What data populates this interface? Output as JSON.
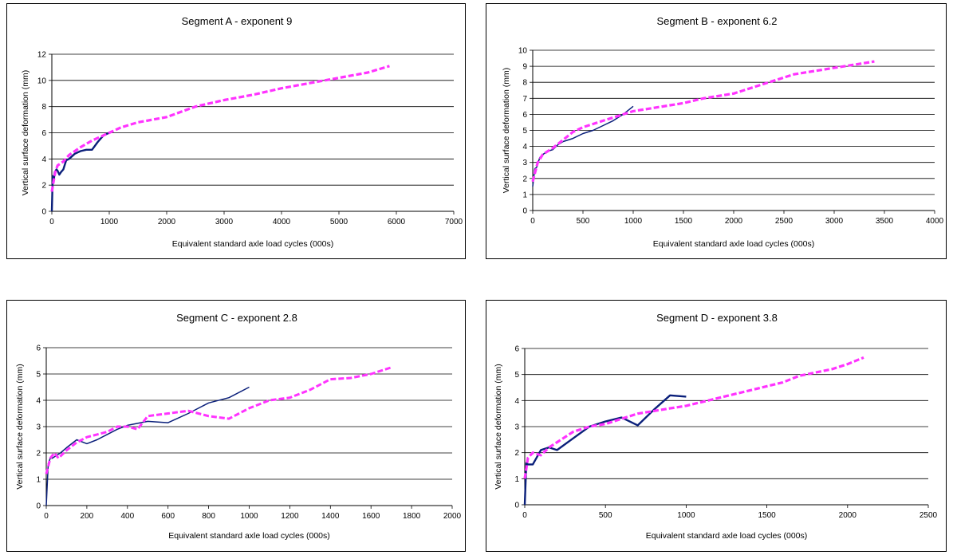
{
  "chart_data": [
    {
      "type": "line",
      "title": "Segment A - exponent 9",
      "xlabel": "Equivalent standard axle load cycles (000s)",
      "ylabel": "Vertical surface deformation (mm)",
      "xlim": [
        0,
        7000
      ],
      "ylim": [
        0,
        12
      ],
      "xticks": [
        0,
        1000,
        2000,
        3000,
        4000,
        5000,
        6000,
        7000
      ],
      "yticks": [
        0,
        2,
        4,
        6,
        8,
        10,
        12
      ],
      "grid": "horizontal",
      "series": [
        {
          "color": "#0a1f7a",
          "dashed": false,
          "width": 2.4,
          "x": [
            0,
            15,
            30,
            50,
            80,
            100,
            130,
            160,
            200,
            250,
            300,
            400,
            500,
            600,
            700,
            800,
            900,
            1000
          ],
          "y": [
            0,
            2.7,
            2.2,
            3.0,
            3.2,
            3.1,
            2.8,
            3.0,
            3.2,
            3.9,
            4.0,
            4.4,
            4.6,
            4.7,
            4.7,
            5.3,
            5.8,
            6.0
          ]
        },
        {
          "color": "#ff33ff",
          "dashed": true,
          "width": 3.2,
          "x": [
            0,
            30,
            60,
            100,
            200,
            300,
            500,
            700,
            1000,
            1200,
            1500,
            2000,
            2500,
            3000,
            3500,
            4000,
            4500,
            5000,
            5500,
            5880
          ],
          "y": [
            1.5,
            2.3,
            3.0,
            3.5,
            3.8,
            4.3,
            4.9,
            5.4,
            6.0,
            6.4,
            6.8,
            7.2,
            8.0,
            8.5,
            8.9,
            9.4,
            9.8,
            10.2,
            10.6,
            11.1
          ]
        }
      ]
    },
    {
      "type": "line",
      "title": "Segment B - exponent 6.2",
      "xlabel": "Equivalent standard axle load cycles (000s)",
      "ylabel": "Vertical surface deformation (mm)",
      "xlim": [
        0,
        4000
      ],
      "ylim": [
        0,
        10
      ],
      "xticks": [
        0,
        500,
        1000,
        1500,
        2000,
        2500,
        3000,
        3500,
        4000
      ],
      "yticks": [
        0,
        1,
        2,
        3,
        4,
        5,
        6,
        7,
        8,
        9,
        10
      ],
      "grid": "horizontal",
      "series": [
        {
          "color": "#0a1f7a",
          "dashed": false,
          "width": 1.5,
          "x": [
            0,
            20,
            40,
            70,
            100,
            150,
            200,
            250,
            300,
            400,
            500,
            600,
            700,
            800,
            900,
            1000
          ],
          "y": [
            1.5,
            2.6,
            2.7,
            3.3,
            3.5,
            3.7,
            3.8,
            4.1,
            4.3,
            4.5,
            4.8,
            5.0,
            5.3,
            5.6,
            6.0,
            6.5
          ]
        },
        {
          "color": "#ff33ff",
          "dashed": true,
          "width": 3.2,
          "x": [
            0,
            20,
            50,
            100,
            200,
            300,
            400,
            500,
            600,
            700,
            800,
            900,
            1000,
            1200,
            1500,
            1700,
            2000,
            2300,
            2600,
            3000,
            3200,
            3400
          ],
          "y": [
            1.8,
            2.3,
            3.0,
            3.5,
            3.9,
            4.4,
            4.9,
            5.2,
            5.4,
            5.6,
            5.8,
            6.0,
            6.2,
            6.4,
            6.7,
            7.0,
            7.3,
            7.9,
            8.5,
            8.9,
            9.1,
            9.3
          ]
        }
      ]
    },
    {
      "type": "line",
      "title": "Segment C - exponent 2.8",
      "xlabel": "Equivalent standard axle load cycles (000s)",
      "ylabel": "Vertical surface deformation (mm)",
      "xlim": [
        0,
        2000
      ],
      "ylim": [
        0,
        6
      ],
      "xticks": [
        0,
        200,
        400,
        600,
        800,
        1000,
        1200,
        1400,
        1600,
        1800,
        2000
      ],
      "yticks": [
        0,
        1,
        2,
        3,
        4,
        5,
        6
      ],
      "grid": "horizontal",
      "series": [
        {
          "color": "#0a1f7a",
          "dashed": false,
          "width": 1.5,
          "x": [
            0,
            10,
            20,
            30,
            50,
            70,
            100,
            150,
            200,
            250,
            300,
            350,
            400,
            500,
            600,
            700,
            800,
            900,
            1000
          ],
          "y": [
            0,
            1.6,
            1.8,
            1.8,
            1.9,
            2.0,
            2.2,
            2.5,
            2.35,
            2.5,
            2.7,
            2.9,
            3.05,
            3.2,
            3.15,
            3.5,
            3.9,
            4.1,
            4.5
          ]
        },
        {
          "color": "#ff33ff",
          "dashed": true,
          "width": 3.0,
          "x": [
            0,
            20,
            40,
            60,
            100,
            150,
            200,
            250,
            300,
            350,
            400,
            450,
            500,
            600,
            700,
            800,
            900,
            1000,
            1100,
            1200,
            1300,
            1400,
            1500,
            1600,
            1700
          ],
          "y": [
            1.2,
            1.8,
            2.0,
            1.8,
            2.1,
            2.4,
            2.6,
            2.7,
            2.8,
            3.0,
            3.0,
            2.9,
            3.4,
            3.5,
            3.6,
            3.4,
            3.3,
            3.7,
            4.0,
            4.1,
            4.4,
            4.8,
            4.85,
            5.0,
            5.25
          ]
        }
      ]
    },
    {
      "type": "line",
      "title": "Segment D - exponent 3.8",
      "xlabel": "Equivalent standard axle load cycles (000s)",
      "ylabel": "Vertical surface deformation (mm)",
      "xlim": [
        0,
        2500
      ],
      "ylim": [
        0,
        6
      ],
      "xticks": [
        0,
        500,
        1000,
        1500,
        2000,
        2500
      ],
      "yticks": [
        0,
        1,
        2,
        3,
        4,
        5,
        6
      ],
      "grid": "horizontal",
      "series": [
        {
          "color": "#0a1f7a",
          "dashed": false,
          "width": 2.4,
          "x": [
            0,
            10,
            20,
            50,
            100,
            150,
            200,
            300,
            400,
            500,
            600,
            700,
            800,
            900,
            1000
          ],
          "y": [
            0,
            1.6,
            1.55,
            1.55,
            2.1,
            2.2,
            2.1,
            2.55,
            3.0,
            3.2,
            3.35,
            3.05,
            3.65,
            4.2,
            4.15
          ]
        },
        {
          "color": "#ff33ff",
          "dashed": true,
          "width": 3.2,
          "x": [
            0,
            20,
            50,
            100,
            150,
            200,
            300,
            400,
            500,
            600,
            700,
            800,
            900,
            1000,
            1200,
            1400,
            1600,
            1700,
            1900,
            2000,
            2100
          ],
          "y": [
            1.0,
            1.8,
            2.0,
            1.9,
            2.2,
            2.4,
            2.8,
            3.0,
            3.1,
            3.3,
            3.5,
            3.6,
            3.7,
            3.8,
            4.1,
            4.4,
            4.7,
            4.95,
            5.2,
            5.4,
            5.65
          ]
        }
      ]
    }
  ]
}
